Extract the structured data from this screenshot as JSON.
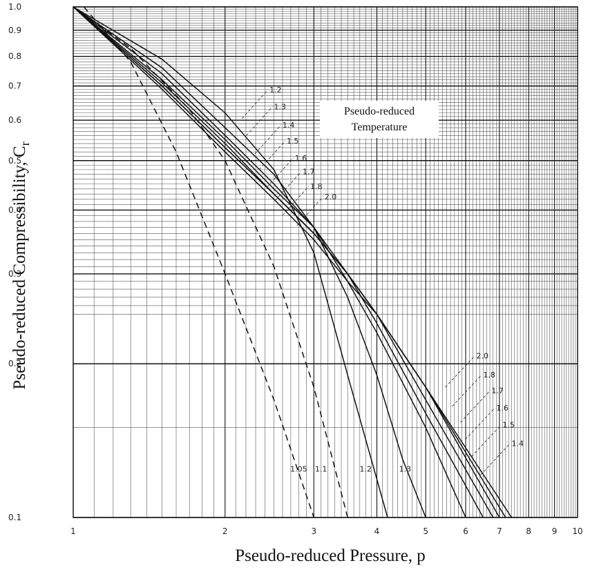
{
  "chart_data": {
    "type": "line",
    "x_scale": "log",
    "y_scale": "log",
    "xlim": [
      1,
      10
    ],
    "ylim": [
      0.1,
      1.0
    ],
    "xlabel": "Pseudo-reduced Pressure, p",
    "ylabel": "Pseudo-reduced Compressibility, C",
    "ylabel_subscript": "r",
    "x_ticks": [
      {
        "v": 1,
        "label": "1"
      },
      {
        "v": 2,
        "label": "2"
      },
      {
        "v": 3,
        "label": "3"
      },
      {
        "v": 4,
        "label": "4"
      },
      {
        "v": 5,
        "label": "5"
      },
      {
        "v": 6,
        "label": "6"
      },
      {
        "v": 7,
        "label": "7"
      },
      {
        "v": 8,
        "label": "8"
      },
      {
        "v": 9,
        "label": "9"
      },
      {
        "v": 10,
        "label": "10"
      }
    ],
    "y_ticks": [
      {
        "v": 0.1,
        "label": "0.1"
      },
      {
        "v": 0.2,
        "label": "0.2"
      },
      {
        "v": 0.3,
        "label": "0.3"
      },
      {
        "v": 0.4,
        "label": "0.4"
      },
      {
        "v": 0.5,
        "label": "0.5"
      },
      {
        "v": 0.6,
        "label": "0.6"
      },
      {
        "v": 0.7,
        "label": "0.7"
      },
      {
        "v": 0.8,
        "label": "0.8"
      },
      {
        "v": 0.9,
        "label": "0.9"
      },
      {
        "v": 1.0,
        "label": "1.0"
      }
    ],
    "grid": true,
    "annotation": [
      "Pseudo-reduced",
      "Temperature"
    ],
    "series": [
      {
        "name": "1.05",
        "style": "dashed",
        "x": [
          1.05,
          1.3,
          1.6,
          2.0,
          2.5,
          3.0
        ],
        "y": [
          1.0,
          0.78,
          0.52,
          0.3,
          0.17,
          0.1
        ]
      },
      {
        "name": "1.1",
        "style": "dashed",
        "x": [
          1.0,
          1.3,
          1.7,
          2.0,
          2.5,
          3.0,
          3.5
        ],
        "y": [
          1.0,
          0.83,
          0.63,
          0.5,
          0.31,
          0.18,
          0.1
        ]
      },
      {
        "name": "1.2",
        "style": "solid",
        "x": [
          1.0,
          1.5,
          2.0,
          2.5,
          3.0,
          3.5,
          4.2
        ],
        "y": [
          1.0,
          0.79,
          0.62,
          0.48,
          0.33,
          0.19,
          0.1
        ]
      },
      {
        "name": "1.3",
        "style": "solid",
        "x": [
          1.0,
          1.5,
          2.0,
          2.5,
          3.0,
          3.5,
          4.0,
          4.5,
          5.0
        ],
        "y": [
          1.0,
          0.76,
          0.58,
          0.47,
          0.37,
          0.27,
          0.19,
          0.13,
          0.1
        ]
      },
      {
        "name": "1.4",
        "style": "solid",
        "x": [
          1.0,
          1.5,
          2.0,
          2.5,
          3.0,
          3.5,
          4.0,
          5.0,
          6.0
        ],
        "y": [
          1.0,
          0.74,
          0.56,
          0.45,
          0.37,
          0.29,
          0.23,
          0.15,
          0.1
        ]
      },
      {
        "name": "1.5",
        "style": "solid",
        "x": [
          1.0,
          1.5,
          2.0,
          2.5,
          3.0,
          3.5,
          4.0,
          5.0,
          6.5
        ],
        "y": [
          1.0,
          0.72,
          0.55,
          0.44,
          0.37,
          0.3,
          0.24,
          0.16,
          0.1
        ]
      },
      {
        "name": "1.6",
        "style": "solid",
        "x": [
          1.0,
          1.5,
          2.0,
          2.5,
          3.0,
          3.5,
          4.0,
          5.0,
          6.8
        ],
        "y": [
          1.0,
          0.71,
          0.54,
          0.43,
          0.36,
          0.3,
          0.25,
          0.17,
          0.1
        ]
      },
      {
        "name": "1.7",
        "style": "solid",
        "x": [
          1.0,
          1.5,
          2.0,
          2.5,
          3.0,
          3.5,
          4.0,
          5.0,
          7.0
        ],
        "y": [
          1.0,
          0.7,
          0.53,
          0.43,
          0.36,
          0.3,
          0.25,
          0.18,
          0.1
        ]
      },
      {
        "name": "1.8",
        "style": "solid",
        "x": [
          1.0,
          1.5,
          2.0,
          2.5,
          3.0,
          3.5,
          4.0,
          5.0,
          7.2
        ],
        "y": [
          1.0,
          0.7,
          0.53,
          0.43,
          0.36,
          0.3,
          0.25,
          0.18,
          0.1
        ]
      },
      {
        "name": "2.0",
        "style": "solid",
        "x": [
          1.0,
          1.5,
          2.0,
          2.5,
          3.0,
          3.5,
          4.0,
          5.0,
          7.4
        ],
        "y": [
          1.0,
          0.69,
          0.52,
          0.42,
          0.35,
          0.29,
          0.25,
          0.18,
          0.1
        ]
      }
    ]
  },
  "curve_labels": {
    "upper": [
      "1.2",
      "1.3",
      "1.4",
      "1.5",
      "1.6",
      "1.7",
      "1.8",
      "2.0"
    ],
    "lower_right": [
      "2.0",
      "1.8",
      "1.7",
      "1.6",
      "1.5",
      "1.4"
    ],
    "bottom": [
      "1.05",
      "1.1",
      "1.2",
      "1.3"
    ]
  }
}
